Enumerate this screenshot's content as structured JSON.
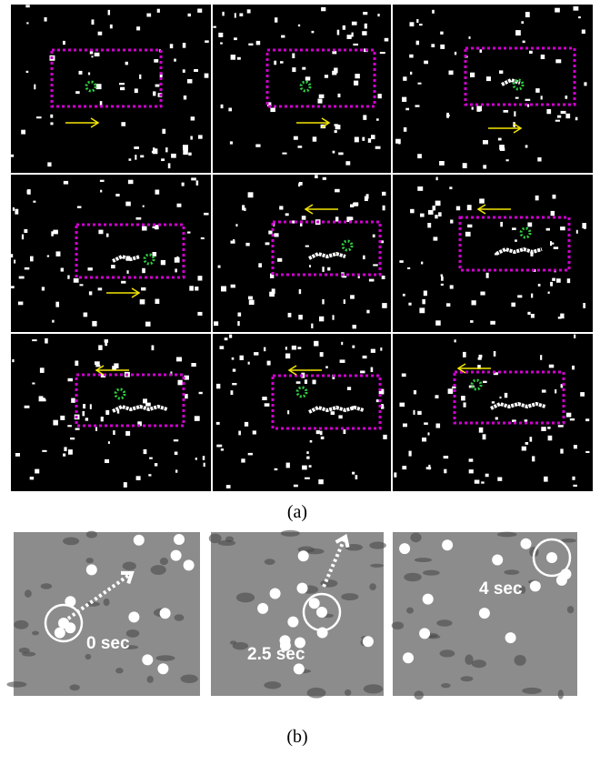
{
  "figure": {
    "panel_a": {
      "label": "(a)"
    },
    "panel_b": {
      "label": "(b)",
      "frames": [
        {
          "time": "0 sec"
        },
        {
          "time": "2.5 sec"
        },
        {
          "time": "4 sec"
        }
      ]
    }
  }
}
